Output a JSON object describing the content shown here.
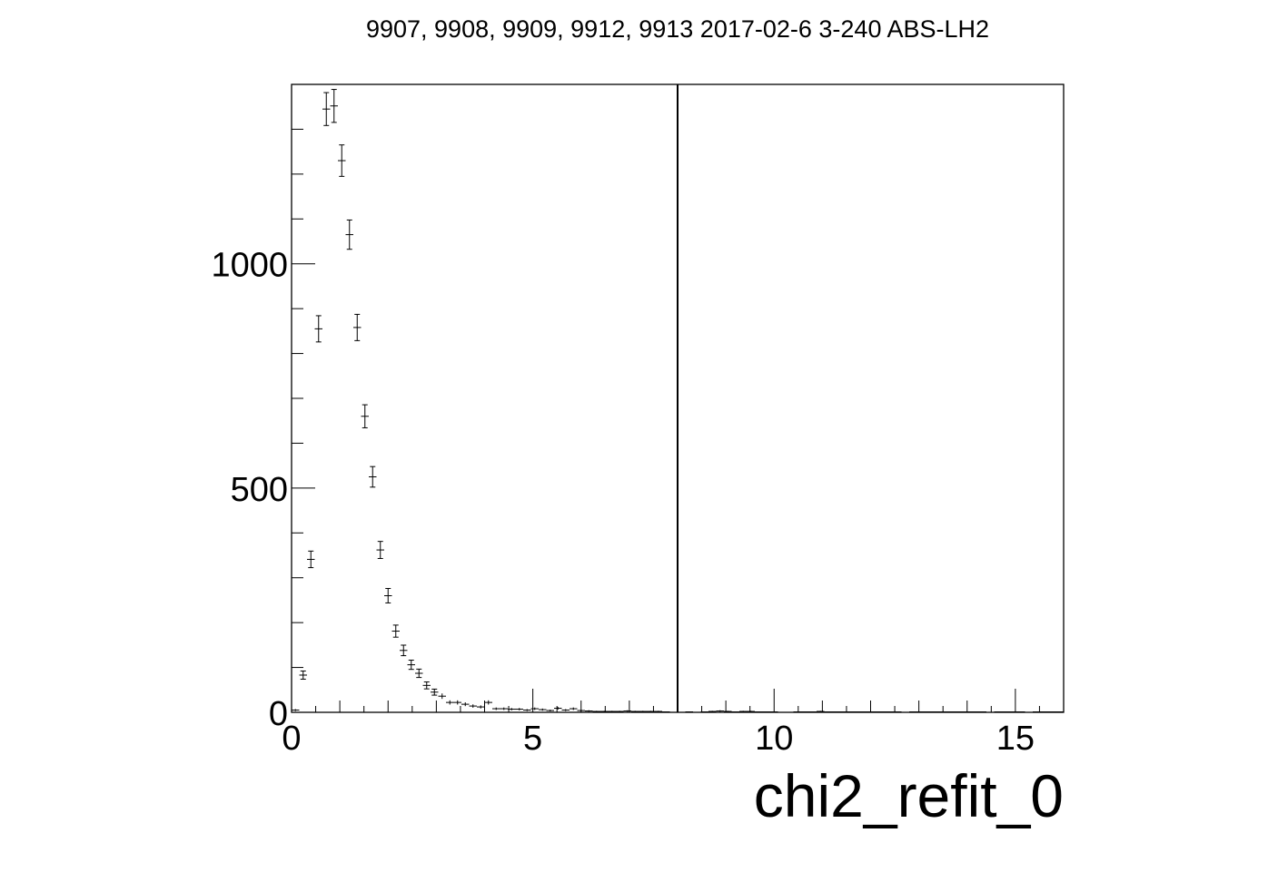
{
  "chart_data": {
    "type": "scatter",
    "title": "9907, 9908, 9909, 9912, 9913 2017-02-6 3-240 ABS-LH2",
    "xlabel": "chi2_refit_0",
    "ylabel": "",
    "xlim": [
      0,
      16
    ],
    "ylim": [
      0,
      1400
    ],
    "x_ticks": [
      0,
      5,
      10,
      15
    ],
    "x_tick_labels": [
      "0",
      "5",
      "10",
      "15"
    ],
    "y_ticks": [
      0,
      500,
      1000
    ],
    "y_tick_labels": [
      "0",
      "500",
      "1000"
    ],
    "bin_width": 0.16,
    "grid": false,
    "legend": "none",
    "error_bars": true,
    "cut_line_x": 8.0,
    "series": [
      {
        "x": [
          0.08,
          0.24,
          0.4,
          0.56,
          0.72,
          0.88,
          1.04,
          1.2,
          1.36,
          1.52,
          1.68,
          1.84,
          2.0,
          2.16,
          2.32,
          2.48,
          2.64,
          2.8,
          2.96,
          3.12,
          3.28,
          3.44,
          3.6,
          3.76,
          3.92,
          4.08,
          4.24,
          4.4,
          4.56,
          4.72,
          4.88,
          5.04,
          5.2,
          5.36,
          5.52,
          5.68,
          5.84,
          6.0,
          6.16,
          6.32,
          6.48,
          6.64,
          6.8,
          6.96,
          7.12,
          7.28,
          7.44,
          7.6,
          7.76,
          7.92,
          8.08,
          8.24,
          8.4,
          8.56,
          8.72,
          8.88,
          9.04,
          9.2,
          9.36,
          9.52,
          9.68,
          9.84,
          10.0,
          10.16,
          10.32,
          10.48,
          10.64,
          10.8,
          10.96,
          11.12,
          11.28,
          11.44,
          11.6,
          11.76,
          11.92,
          12.08,
          12.24,
          12.4,
          12.56,
          12.72,
          12.88,
          13.04,
          13.2,
          13.36,
          13.52,
          13.68,
          13.84,
          14.0,
          14.16,
          14.32,
          14.48,
          14.64,
          14.8,
          14.96,
          15.12,
          15.28,
          15.44,
          15.6,
          15.76,
          15.92
        ],
        "values": [
          5,
          83,
          341,
          855,
          1345,
          1352,
          1230,
          1065,
          858,
          660,
          525,
          362,
          260,
          181,
          138,
          106,
          87,
          60,
          45,
          36,
          22,
          22,
          18,
          14,
          12,
          22,
          8,
          8,
          7,
          7,
          5,
          8,
          6,
          4,
          9,
          5,
          8,
          4,
          3,
          2,
          2,
          2,
          2,
          3,
          2,
          2,
          2,
          2,
          1,
          0,
          0,
          1,
          0,
          1,
          2,
          3,
          2,
          1,
          2,
          2,
          1,
          1,
          1,
          0,
          0,
          1,
          1,
          1,
          2,
          1,
          1,
          1,
          1,
          1,
          1,
          1,
          1,
          1,
          1,
          0,
          1,
          1,
          1,
          1,
          1,
          1,
          1,
          1,
          1,
          1,
          0,
          1,
          1,
          1,
          1,
          0,
          1,
          1,
          1,
          1
        ]
      }
    ]
  }
}
